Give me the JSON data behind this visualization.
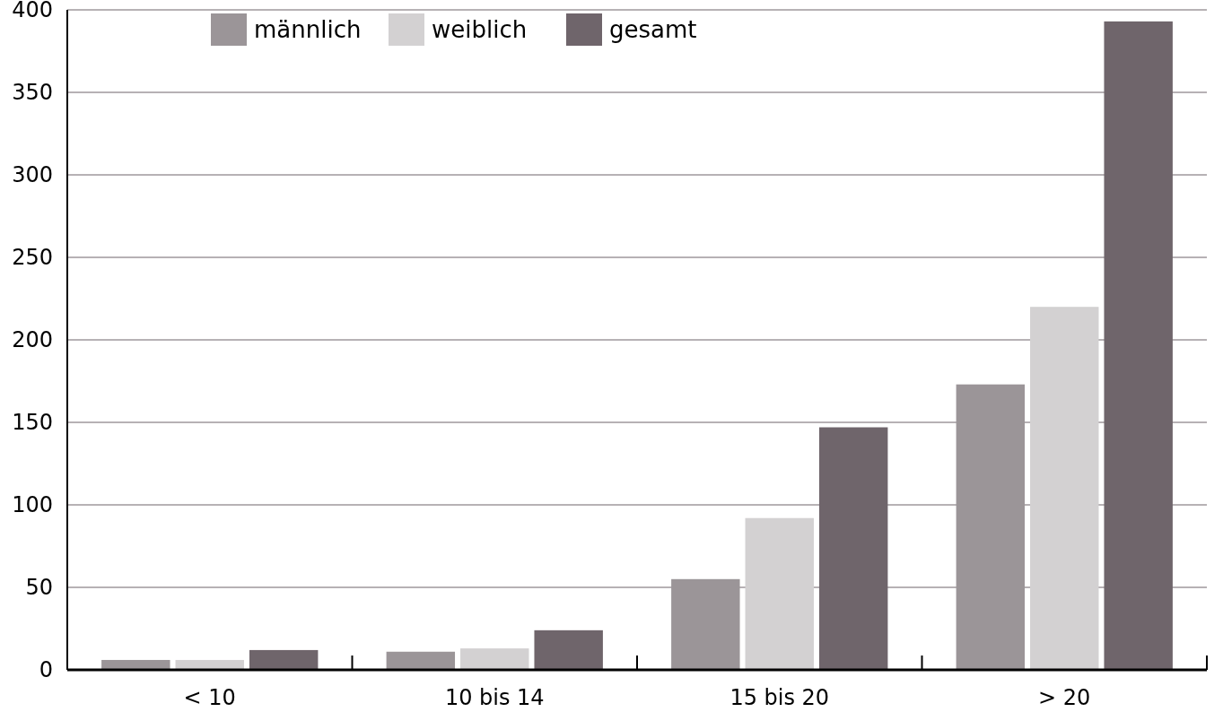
{
  "chart_data": {
    "type": "bar",
    "categories": [
      "< 10",
      "10 bis 14",
      "15 bis 20",
      "> 20"
    ],
    "series": [
      {
        "name": "männlich",
        "color": "#9b9598",
        "values": [
          6,
          11,
          55,
          173
        ]
      },
      {
        "name": "weiblich",
        "color": "#d3d1d2",
        "values": [
          6,
          13,
          92,
          220
        ]
      },
      {
        "name": "gesamt",
        "color": "#6f656b",
        "values": [
          12,
          24,
          147,
          393
        ]
      }
    ],
    "ylim": [
      0,
      400
    ],
    "yticks": [
      0,
      50,
      100,
      150,
      200,
      250,
      300,
      350,
      400
    ],
    "grid": "y",
    "legend": "top left"
  }
}
